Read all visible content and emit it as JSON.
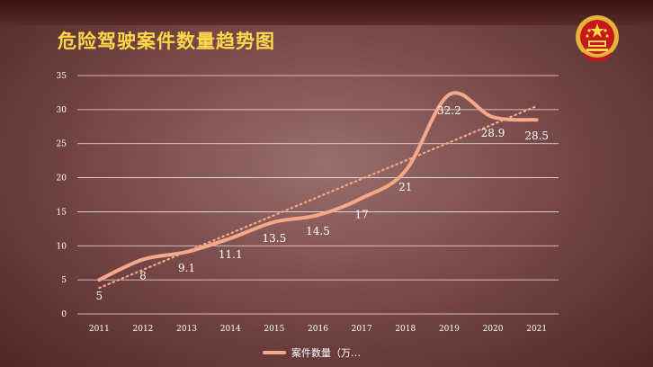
{
  "chart_data": {
    "type": "line",
    "title": "危险驾驶案件数量趋势图",
    "categories": [
      "2011",
      "2012",
      "2013",
      "2014",
      "2015",
      "2016",
      "2017",
      "2018",
      "2019",
      "2020",
      "2021"
    ],
    "series": [
      {
        "name": "案件数量（万…",
        "values": [
          5,
          8,
          9.1,
          11.1,
          13.5,
          14.5,
          17,
          21,
          32.2,
          28.9,
          28.5
        ]
      }
    ],
    "data_labels": [
      "5",
      "8",
      "9.1",
      "11.1",
      "13.5",
      "14.5",
      "17",
      "21",
      "32.2",
      "28.9",
      "28.5"
    ],
    "yticks": [
      "0",
      "5",
      "10",
      "15",
      "20",
      "25",
      "30",
      "35"
    ],
    "ylim": [
      0,
      35
    ],
    "trendline": "linear-dotted",
    "grid": true,
    "legend_position": "bottom",
    "colors": {
      "series": "#f5a98a",
      "title": "#ffd84a",
      "grid": "#ffffff"
    }
  }
}
